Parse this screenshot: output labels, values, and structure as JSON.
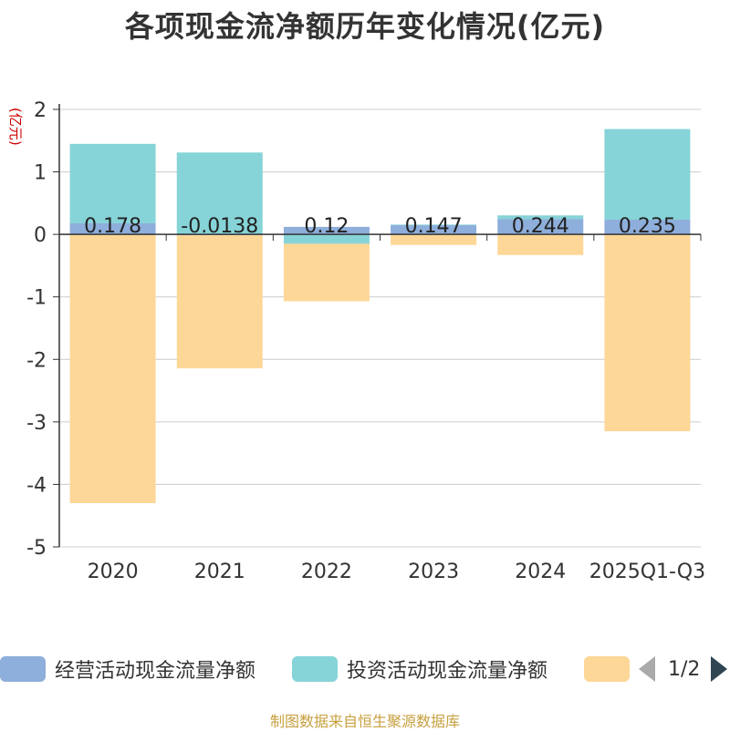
{
  "title": "各项现金流净额历年变化情况(亿元)",
  "unit_label": "(亿元)",
  "source": "制图数据来自恒生聚源数据库",
  "legend": {
    "items": [
      {
        "label": "经营活动现金流量净额",
        "color": "#8eaedb"
      },
      {
        "label": "投资活动现金流量净额",
        "color": "#86d4d8"
      },
      {
        "label": "",
        "color": "#fdd797"
      }
    ],
    "page": "1/2"
  },
  "chart_data": {
    "type": "bar",
    "stacked": true,
    "categories": [
      "2020",
      "2021",
      "2022",
      "2023",
      "2024",
      "2025Q1-Q3"
    ],
    "ylim": [
      -5,
      2
    ],
    "yticks": [
      2,
      1,
      0,
      -1,
      -2,
      -3,
      -4,
      -5
    ],
    "grid": true,
    "series": [
      {
        "name": "经营活动现金流量净额",
        "color": "#8eaedb",
        "values": [
          0.178,
          -0.0138,
          0.12,
          0.147,
          0.244,
          0.235
        ],
        "labels": [
          "0.178",
          "-0.0138",
          "0.12",
          "0.147",
          "0.244",
          "0.235"
        ]
      },
      {
        "name": "投资活动现金流量净额",
        "color": "#86d4d8",
        "values": [
          1.27,
          1.31,
          -0.15,
          0.01,
          0.06,
          1.45
        ]
      },
      {
        "color": "#fdd797",
        "values": [
          -4.3,
          -2.13,
          -0.92,
          -0.17,
          -0.33,
          -3.15
        ]
      }
    ]
  }
}
